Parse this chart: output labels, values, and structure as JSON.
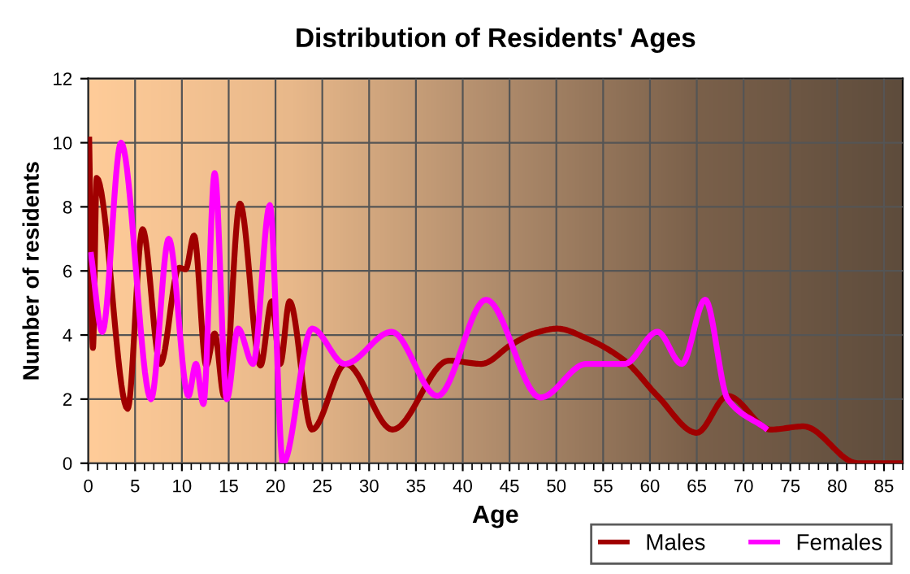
{
  "chart_data": {
    "type": "line",
    "title": "Distribution of Residents' Ages",
    "xlabel": "Age",
    "ylabel": "Number of residents",
    "series": [
      {
        "name": "Males",
        "color": "#a00000",
        "x": [
          0.1,
          0.5,
          0.9,
          4.2,
          5.8,
          7.7,
          9.7,
          10.4,
          11.3,
          12.6,
          13.5,
          14.5,
          16.2,
          18.4,
          19.6,
          20.5,
          21.5,
          23.9,
          27.5,
          32.5,
          38.5,
          42,
          45.2,
          47.6,
          50.1,
          53.2,
          57.3,
          60.8,
          65,
          68.3,
          72.9,
          76.4,
          82.2,
          86.9
        ],
        "values": [
          10.1,
          3.6,
          8.9,
          1.7,
          7.3,
          3.1,
          6.1,
          6.05,
          7.1,
          3.05,
          4.05,
          2.1,
          8.1,
          3.05,
          5.05,
          3.1,
          5.05,
          1.05,
          3.1,
          1.05,
          3.2,
          3.1,
          3.7,
          4.05,
          4.2,
          3.9,
          3.2,
          2.1,
          0.95,
          2.1,
          1.05,
          1.15,
          0,
          0
        ]
      },
      {
        "name": "Females",
        "color": "#ff00ff",
        "x": [
          0.3,
          1.5,
          3.5,
          6.7,
          8.6,
          10.7,
          11.5,
          12.3,
          13.5,
          14.8,
          16.0,
          17.6,
          19.4,
          20.8,
          23.9,
          27.4,
          32.4,
          37.3,
          42.5,
          48.3,
          53.2,
          57.3,
          60.8,
          63.4,
          65.9,
          68.3,
          72.3
        ],
        "values": [
          6.5,
          4.1,
          10.0,
          2.0,
          7.0,
          2.1,
          3.1,
          1.85,
          9.05,
          2.0,
          4.2,
          3.1,
          8.05,
          0,
          4.2,
          3.1,
          4.1,
          2.1,
          5.1,
          2.05,
          3.1,
          3.1,
          4.1,
          3.1,
          5.1,
          2.0,
          1.1
        ]
      }
    ],
    "xlim": [
      0,
      87
    ],
    "xticks": [
      0,
      5,
      10,
      15,
      20,
      25,
      30,
      35,
      40,
      45,
      50,
      55,
      60,
      65,
      70,
      75,
      80,
      85
    ],
    "ylim": [
      0,
      12
    ],
    "yticks": [
      0,
      2,
      4,
      6,
      8,
      10,
      12
    ],
    "grid": true,
    "legend": "bottom right",
    "marker": "none",
    "line_style": "solid"
  }
}
